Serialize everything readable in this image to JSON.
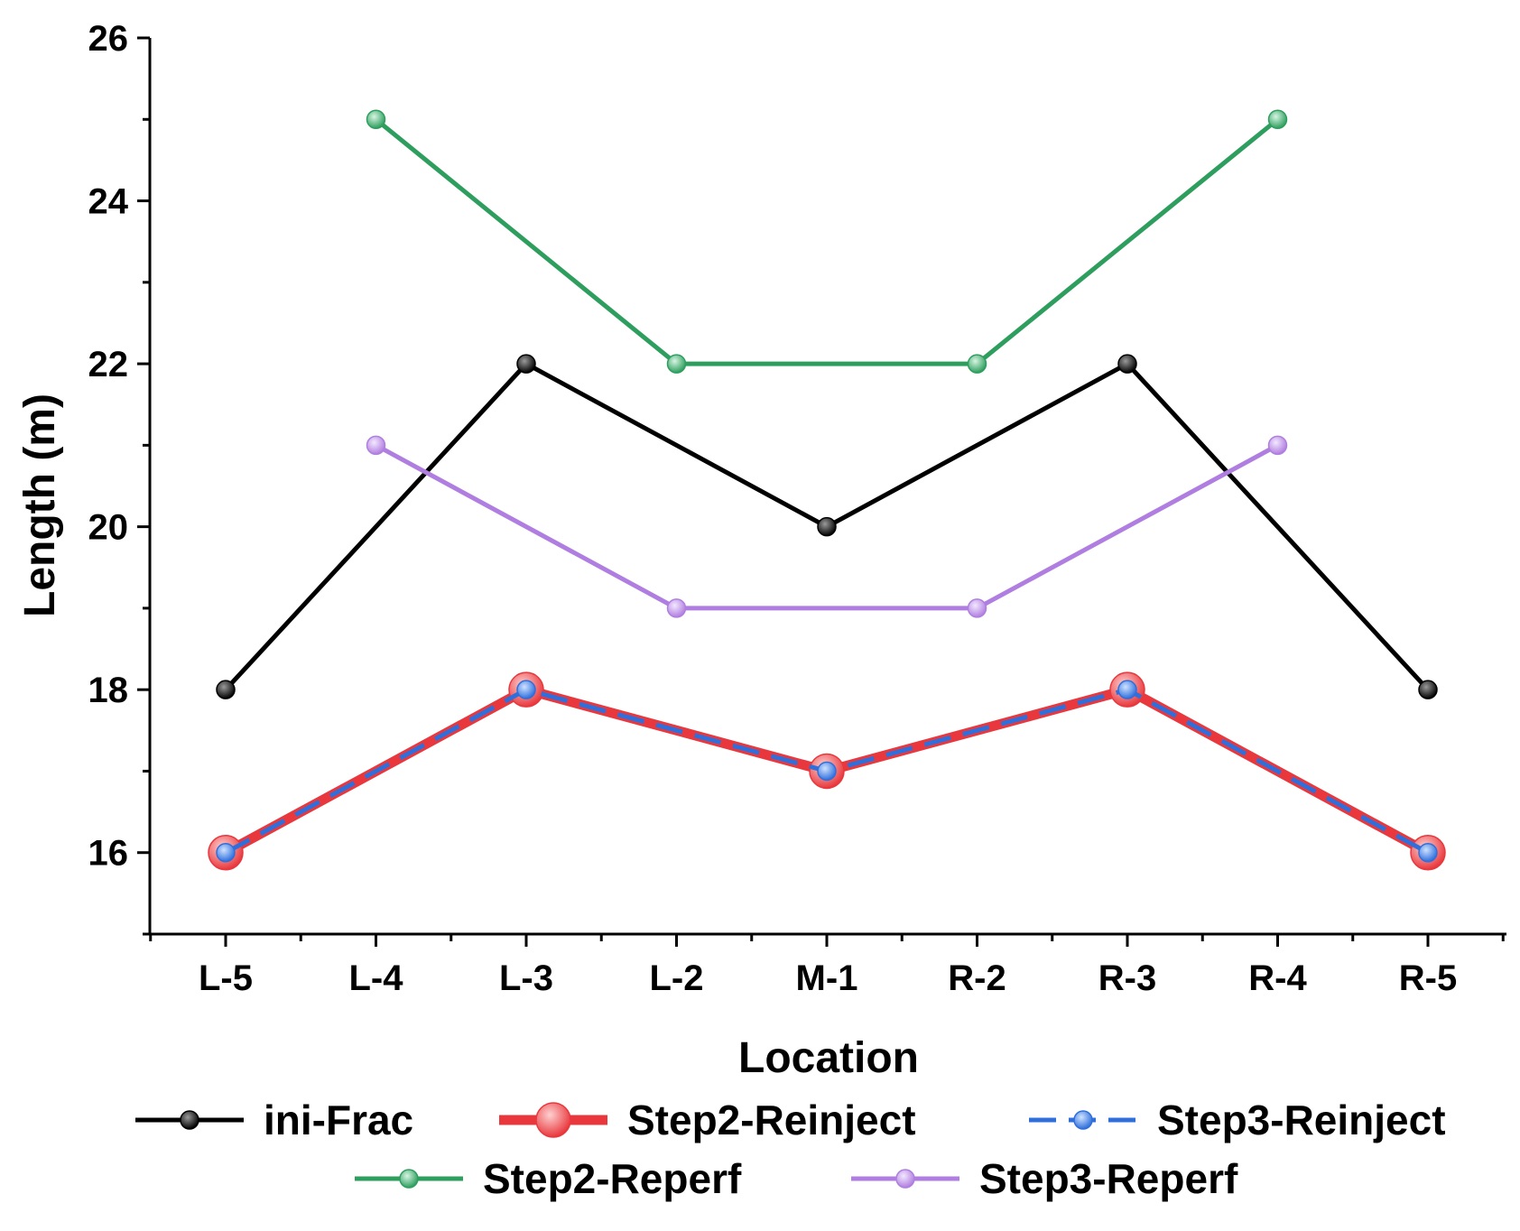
{
  "chart_data": {
    "type": "line",
    "title": "",
    "xlabel": "Location",
    "ylabel": "Length (m)",
    "categories": [
      "L-5",
      "L-4",
      "L-3",
      "L-2",
      "M-1",
      "R-2",
      "R-3",
      "R-4",
      "R-5"
    ],
    "ylim": [
      15,
      26
    ],
    "yticks": [
      16,
      18,
      20,
      22,
      24,
      26
    ],
    "grid": false,
    "legend_position": "bottom",
    "series": [
      {
        "name": "ini-Frac",
        "color": "#000000",
        "style": "solid",
        "values": [
          18,
          null,
          22,
          null,
          20,
          null,
          22,
          null,
          18
        ]
      },
      {
        "name": "Step2-Reinject",
        "color": "#e8383d",
        "style": "solid",
        "values": [
          16,
          null,
          18,
          null,
          17,
          null,
          18,
          null,
          16
        ]
      },
      {
        "name": "Step3-Reinject",
        "color": "#2f6fdc",
        "style": "dashed",
        "values": [
          16,
          null,
          18,
          null,
          17,
          null,
          18,
          null,
          16
        ]
      },
      {
        "name": "Step2-Reperf",
        "color": "#2e9e5e",
        "style": "solid",
        "values": [
          null,
          25,
          null,
          22,
          null,
          22,
          null,
          25,
          null
        ]
      },
      {
        "name": "Step3-Reperf",
        "color": "#b07ee0",
        "style": "solid",
        "values": [
          null,
          21,
          null,
          19,
          null,
          19,
          null,
          21,
          null
        ]
      }
    ]
  }
}
